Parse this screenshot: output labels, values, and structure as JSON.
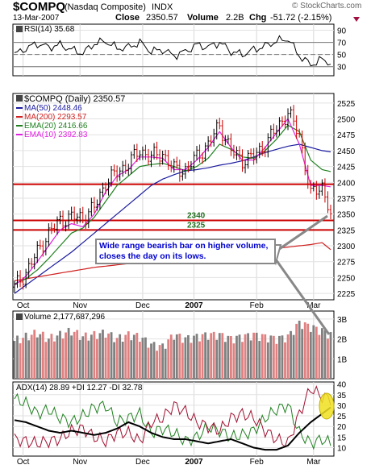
{
  "header": {
    "symbol": "$COMPQ",
    "name": "(Nasdaq Composite)",
    "exchange": "INDX",
    "date": "13-Mar-2007",
    "close_label": "Close",
    "close": "2350.57",
    "volume_label": "Volume",
    "volume": "2.2B",
    "chg_label": "Chg",
    "chg": "-51.72 (-2.15%)",
    "watermark": "© StockCharts.com"
  },
  "rsi_panel": {
    "label": "RSI(14) 35.68",
    "ticks": [
      "90",
      "70",
      "50",
      "30"
    ],
    "tick_values": [
      90,
      70,
      50,
      30
    ],
    "range": [
      15,
      100
    ],
    "reference_lines": [
      70,
      50,
      30
    ]
  },
  "price_panel": {
    "legend": [
      {
        "text": "$COMPQ (Daily) 2350.57",
        "color": "#000000"
      },
      {
        "text": "MA(50) 2448.46",
        "color": "#1a1aa0"
      },
      {
        "text": "MA(200) 2293.57",
        "color": "#d02020"
      },
      {
        "text": "EMA(20) 2416.66",
        "color": "#208020"
      },
      {
        "text": "EMA(10) 2392.83",
        "color": "#e020e0"
      }
    ],
    "y_ticks": [
      "2525",
      "2500",
      "2475",
      "2450",
      "2425",
      "2400",
      "2375",
      "2350",
      "2325",
      "2300",
      "2275",
      "2250",
      "2225"
    ],
    "y_tick_values": [
      2525,
      2500,
      2475,
      2450,
      2425,
      2400,
      2375,
      2350,
      2325,
      2300,
      2275,
      2250,
      2225
    ],
    "ylim": [
      2215,
      2540
    ],
    "hlines": [
      {
        "value": 2397,
        "color": "#cc0000"
      },
      {
        "value": 2340,
        "color": "#cc0000"
      },
      {
        "value": 2325,
        "color": "#cc0000"
      }
    ],
    "level_labels": [
      {
        "text": "2340",
        "value": 2340
      },
      {
        "text": "2325",
        "value": 2325
      }
    ],
    "annotation": "Wide range bearish bar on higher volume, closes the day on its lows."
  },
  "volume_panel": {
    "label": "Volume 2,177,687,296",
    "ticks": [
      "3B",
      "2B",
      "1B"
    ],
    "tick_values": [
      3,
      2,
      1
    ],
    "range": [
      0,
      3.4
    ]
  },
  "adx_panel": {
    "label": "ADX(14) 28.89 +DI 12.27 -DI 32.78",
    "ticks": [
      "40",
      "35",
      "30",
      "25",
      "20",
      "15",
      "10"
    ],
    "tick_values": [
      40,
      35,
      30,
      25,
      20,
      15,
      10
    ],
    "range": [
      6,
      41
    ]
  },
  "x_axis": {
    "labels": [
      "Oct",
      "Nov",
      "Dec",
      "2007",
      "Feb",
      "Mar"
    ],
    "label_days": [
      3,
      23,
      45,
      63,
      85,
      105
    ]
  },
  "colors": {
    "up_bar": "#000000",
    "down_bar": "#cc0000",
    "vol_up": "#808080",
    "vol_down": "#e08080",
    "ma50": "#1a1aa0",
    "ma200": "#d02020",
    "ema20": "#208020",
    "ema10": "#e020e0",
    "adx": "#000000",
    "plus_di": "#208020",
    "minus_di": "#a01030",
    "highlight": "#f0e020",
    "annotation_text": "#0000cc"
  },
  "chart_data": {
    "type": "line",
    "title": "$COMPQ (Nasdaq Composite) INDX",
    "xlabel": "",
    "ylabel": "",
    "x": [
      0,
      4,
      8,
      12,
      16,
      20,
      24,
      28,
      32,
      36,
      40,
      44,
      48,
      52,
      56,
      60,
      64,
      68,
      72,
      76,
      80,
      84,
      88,
      92,
      96,
      100,
      104,
      108,
      111
    ],
    "ylim": [
      2215,
      2540
    ],
    "series": [
      {
        "name": "$COMPQ (Daily)",
        "values": [
          2235,
          2258,
          2290,
          2320,
          2340,
          2345,
          2345,
          2360,
          2400,
          2415,
          2430,
          2450,
          2440,
          2445,
          2420,
          2420,
          2440,
          2460,
          2490,
          2450,
          2435,
          2440,
          2460,
          2485,
          2510,
          2475,
          2380,
          2395,
          2351
        ]
      },
      {
        "name": "MA(50)",
        "values": [
          2225,
          2238,
          2251,
          2264,
          2277,
          2290,
          2305,
          2320,
          2335,
          2350,
          2365,
          2380,
          2395,
          2405,
          2412,
          2418,
          2420,
          2423,
          2427,
          2430,
          2434,
          2440,
          2447,
          2452,
          2457,
          2460,
          2455,
          2450,
          2448
        ]
      },
      {
        "name": "MA(200)",
        "values": [
          2245,
          2248,
          2251,
          2254,
          2257,
          2260,
          2263,
          2266,
          2268,
          2270,
          2272,
          2274,
          2275,
          2276,
          2278,
          2280,
          2282,
          2284,
          2286,
          2288,
          2290,
          2292,
          2294,
          2296,
          2298,
          2300,
          2302,
          2305,
          2294
        ]
      },
      {
        "name": "EMA(20)",
        "values": [
          2240,
          2248,
          2262,
          2280,
          2300,
          2320,
          2328,
          2345,
          2370,
          2395,
          2410,
          2425,
          2428,
          2430,
          2425,
          2418,
          2425,
          2438,
          2460,
          2452,
          2440,
          2438,
          2450,
          2468,
          2490,
          2480,
          2435,
          2420,
          2417
        ]
      },
      {
        "name": "EMA(10)",
        "values": [
          2238,
          2252,
          2275,
          2300,
          2325,
          2335,
          2330,
          2350,
          2385,
          2410,
          2420,
          2440,
          2440,
          2438,
          2420,
          2420,
          2435,
          2455,
          2480,
          2455,
          2435,
          2435,
          2455,
          2478,
          2500,
          2460,
          2395,
          2395,
          2393
        ]
      }
    ],
    "rsi": [
      50,
      60,
      68,
      62,
      66,
      58,
      52,
      68,
      72,
      60,
      62,
      70,
      55,
      58,
      48,
      55,
      66,
      62,
      70,
      55,
      50,
      58,
      64,
      72,
      76,
      48,
      33,
      42,
      36
    ],
    "volume_billions": [
      1.9,
      2.1,
      2.3,
      2.0,
      2.2,
      2.4,
      2.1,
      2.2,
      2.3,
      2.0,
      2.2,
      2.1,
      1.7,
      1.6,
      2.2,
      2.0,
      2.1,
      2.2,
      2.2,
      2.0,
      2.1,
      2.2,
      2.1,
      2.0,
      2.1,
      2.8,
      2.6,
      2.4,
      2.2
    ],
    "adx": [
      23,
      22,
      20,
      18,
      17,
      18,
      17,
      16,
      17,
      19,
      22,
      20,
      17,
      15,
      14,
      14,
      13,
      12,
      13,
      14,
      12,
      10,
      9,
      9,
      11,
      17,
      22,
      26,
      29
    ],
    "plus_di": [
      33,
      31,
      26,
      28,
      24,
      22,
      25,
      29,
      30,
      22,
      24,
      26,
      17,
      19,
      17,
      13,
      15,
      20,
      18,
      15,
      16,
      18,
      24,
      28,
      30,
      17,
      12,
      14,
      12
    ],
    "minus_di": [
      14,
      13,
      12,
      13,
      14,
      18,
      19,
      15,
      13,
      17,
      17,
      13,
      22,
      24,
      30,
      27,
      22,
      20,
      18,
      24,
      26,
      24,
      18,
      14,
      12,
      26,
      38,
      34,
      33
    ]
  }
}
